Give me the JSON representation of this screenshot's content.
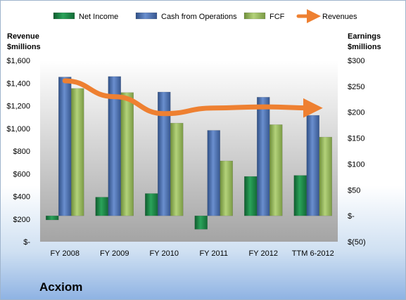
{
  "chart_data": {
    "type": "bar",
    "categories": [
      "FY 2008",
      "FY 2009",
      "FY 2010",
      "FY 2011",
      "FY 2012",
      "TTM 6-2012"
    ],
    "series": [
      {
        "name": "Net Income",
        "axis": "right",
        "type": "bar",
        "color": "#1e8a4a",
        "values": [
          -8,
          36,
          43,
          -26,
          76,
          78
        ]
      },
      {
        "name": "Cash from Operations",
        "axis": "right",
        "type": "bar",
        "color": "#4a6fae",
        "values": [
          268,
          269,
          239,
          165,
          229,
          194
        ]
      },
      {
        "name": "FCF",
        "axis": "right",
        "type": "bar",
        "color": "#98bb5e",
        "values": [
          246,
          238,
          179,
          106,
          176,
          152
        ]
      },
      {
        "name": "Revenues",
        "axis": "left",
        "type": "line",
        "color": "#ee8031",
        "values": [
          1420,
          1280,
          1130,
          1180,
          1190,
          1180
        ]
      }
    ],
    "left_axis": {
      "title_line1": "Revenue",
      "title_line2": "$millions",
      "min": 0,
      "max": 1600,
      "step": 200,
      "tick_labels": [
        "$-",
        "$200",
        "$400",
        "$600",
        "$800",
        "$1,000",
        "$1,200",
        "$1,400",
        "$1,600"
      ]
    },
    "right_axis": {
      "title_line1": "Earnings",
      "title_line2": "$millions",
      "min": -50,
      "max": 300,
      "step": 50,
      "tick_labels": [
        "$(50)",
        "$-",
        "$50",
        "$100",
        "$150",
        "$200",
        "$250",
        "$300"
      ]
    },
    "legend_position": "top",
    "grid": false
  },
  "company_name": "Acxiom"
}
